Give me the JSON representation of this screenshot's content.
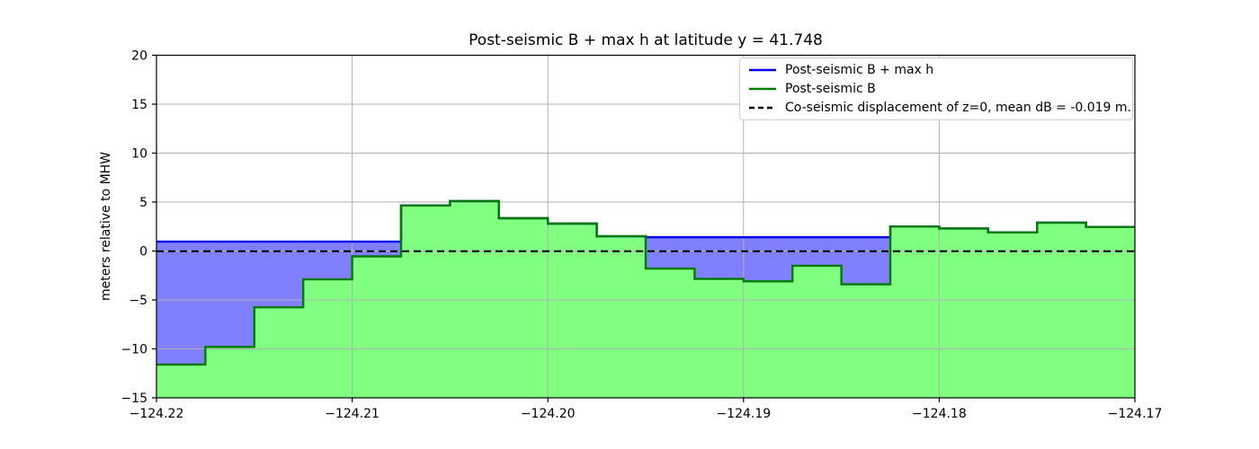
{
  "chart_data": {
    "type": "area",
    "title": "Post-seismic B + max h at latitude y = 41.748",
    "xlabel": "",
    "ylabel": "meters relative to MHW",
    "xlim": [
      -124.22,
      -124.17
    ],
    "ylim": [
      -15,
      20
    ],
    "grid": true,
    "legend_position": "upper right",
    "x_ticks": [
      {
        "v": -124.22,
        "label": "−124.22"
      },
      {
        "v": -124.21,
        "label": "−124.21"
      },
      {
        "v": -124.2,
        "label": "−124.20"
      },
      {
        "v": -124.19,
        "label": "−124.19"
      },
      {
        "v": -124.18,
        "label": "−124.18"
      },
      {
        "v": -124.17,
        "label": "−124.17"
      }
    ],
    "y_ticks": [
      {
        "v": -15,
        "label": "−15"
      },
      {
        "v": -10,
        "label": "−10"
      },
      {
        "v": -5,
        "label": "−5"
      },
      {
        "v": 0,
        "label": "0"
      },
      {
        "v": 5,
        "label": "5"
      },
      {
        "v": 10,
        "label": "10"
      },
      {
        "v": 15,
        "label": "15"
      },
      {
        "v": 20,
        "label": "20"
      }
    ],
    "step_edges_longitude": [
      -124.22,
      -124.2175,
      -124.215,
      -124.2125,
      -124.21,
      -124.2075,
      -124.205,
      -124.2025,
      -124.2,
      -124.1975,
      -124.195,
      -124.1925,
      -124.19,
      -124.1875,
      -124.185,
      -124.1825,
      -124.18,
      -124.1775,
      -124.175,
      -124.1725,
      -124.17
    ],
    "series": [
      {
        "name": "Post-seismic B + max h",
        "type": "step-line",
        "color": "#0000ee",
        "fill": "#8080ff",
        "values": [
          0.95,
          0.95,
          0.95,
          0.95,
          0.95,
          4.65,
          5.1,
          3.35,
          2.8,
          1.5,
          1.4,
          1.4,
          1.4,
          1.4,
          1.4,
          2.5,
          2.3,
          1.9,
          2.9,
          2.45
        ]
      },
      {
        "name": "Post-seismic B",
        "type": "step-line",
        "color": "#047a04",
        "fill": "#80ff80",
        "values": [
          -11.6,
          -9.8,
          -5.75,
          -2.9,
          -0.55,
          4.65,
          5.1,
          3.35,
          2.8,
          1.5,
          -1.8,
          -2.85,
          -3.1,
          -1.5,
          -3.4,
          2.5,
          2.3,
          1.9,
          2.9,
          2.45
        ]
      },
      {
        "name": "Co-seismic displacement of z=0, mean dB = -0.019 m.",
        "type": "dashed-hline",
        "color": "#000000",
        "value": -0.019
      }
    ],
    "grid_color": "#b0b0b0",
    "spine_color": "#000000"
  }
}
